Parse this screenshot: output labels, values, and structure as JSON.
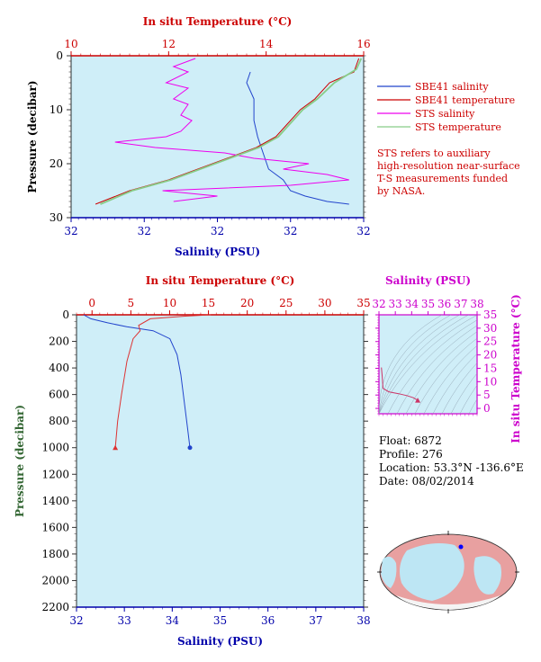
{
  "chart_data": [
    {
      "type": "line",
      "panel": "upper-profile",
      "top_axis_label": "In situ Temperature (°C)",
      "bottom_axis_label": "Salinity (PSU)",
      "ylabel": "Pressure (decibar)",
      "temperature_ticks": [
        "10",
        "12",
        "14",
        "16"
      ],
      "temperature_range": [
        10,
        16
      ],
      "salinity_ticks": [
        "32",
        "32",
        "32",
        "32",
        "32"
      ],
      "salinity_range": [
        31.7,
        32.5
      ],
      "pressure_ticks": [
        "0",
        "10",
        "20",
        "30"
      ],
      "pressure_range": [
        0,
        30
      ],
      "series": [
        {
          "name": "SBE41 salinity",
          "color": "#2244cc",
          "axis": "salinity",
          "points": [
            [
              32.19,
              3
            ],
            [
              32.18,
              5
            ],
            [
              32.2,
              8
            ],
            [
              32.2,
              12
            ],
            [
              32.21,
              15
            ],
            [
              32.22,
              17
            ],
            [
              32.23,
              19
            ],
            [
              32.24,
              21
            ],
            [
              32.28,
              23
            ],
            [
              32.3,
              25
            ],
            [
              32.34,
              26
            ],
            [
              32.4,
              27
            ],
            [
              32.46,
              27.5
            ]
          ]
        },
        {
          "name": "SBE41 temperature",
          "color": "#cc0000",
          "axis": "temperature",
          "points": [
            [
              15.9,
              0.5
            ],
            [
              15.8,
              3
            ],
            [
              15.3,
              5
            ],
            [
              15.0,
              8
            ],
            [
              14.7,
              10
            ],
            [
              14.4,
              13
            ],
            [
              14.2,
              15
            ],
            [
              13.8,
              17
            ],
            [
              13.2,
              19
            ],
            [
              12.6,
              21
            ],
            [
              12.0,
              23
            ],
            [
              11.2,
              25
            ],
            [
              10.5,
              27.5
            ]
          ]
        },
        {
          "name": "STS salinity",
          "color": "#ee00ee",
          "axis": "salinity",
          "points": [
            [
              32.04,
              0.5
            ],
            [
              31.98,
              2
            ],
            [
              32.02,
              3
            ],
            [
              31.96,
              5
            ],
            [
              32.02,
              6
            ],
            [
              31.98,
              8
            ],
            [
              32.02,
              9
            ],
            [
              32.0,
              11
            ],
            [
              32.03,
              12
            ],
            [
              32.0,
              14
            ],
            [
              31.96,
              15
            ],
            [
              31.82,
              16
            ],
            [
              31.93,
              17
            ],
            [
              32.12,
              18
            ],
            [
              32.2,
              19
            ],
            [
              32.35,
              20
            ],
            [
              32.28,
              21
            ],
            [
              32.4,
              22
            ],
            [
              32.46,
              23
            ],
            [
              32.3,
              24
            ],
            [
              31.95,
              25
            ],
            [
              32.1,
              26
            ],
            [
              31.98,
              27
            ]
          ]
        },
        {
          "name": "STS temperature",
          "color": "#88cc88",
          "axis": "temperature",
          "points": [
            [
              15.95,
              0.5
            ],
            [
              15.85,
              2.5
            ],
            [
              15.4,
              5
            ],
            [
              15.05,
              8
            ],
            [
              14.75,
              10
            ],
            [
              14.45,
              13
            ],
            [
              14.25,
              15
            ],
            [
              13.85,
              17
            ],
            [
              13.25,
              19
            ],
            [
              12.65,
              21
            ],
            [
              12.05,
              23
            ],
            [
              11.25,
              25
            ],
            [
              10.6,
              27.5
            ]
          ]
        }
      ],
      "legend": "right",
      "note": "STS refers to auxiliary high-resolution near-surface T-S measurements funded by NASA."
    },
    {
      "type": "line",
      "panel": "lower-profile",
      "top_axis_label": "In situ Temperature (°C)",
      "bottom_axis_label": "Salinity (PSU)",
      "ylabel": "Pressure (decibar)",
      "temperature_ticks": [
        "0",
        "5",
        "10",
        "15",
        "20",
        "25",
        "30",
        "35"
      ],
      "temperature_range": [
        -2,
        35
      ],
      "salinity_ticks": [
        "32",
        "33",
        "34",
        "35",
        "36",
        "37",
        "38"
      ],
      "salinity_range": [
        32,
        38
      ],
      "pressure_ticks": [
        "0",
        "200",
        "400",
        "600",
        "800",
        "1000",
        "1200",
        "1400",
        "1600",
        "1800",
        "2000",
        "2200"
      ],
      "pressure_range": [
        0,
        2200
      ],
      "series": [
        {
          "name": "salinity",
          "color": "#2244cc",
          "axis": "salinity",
          "points": [
            [
              32.15,
              0
            ],
            [
              32.3,
              30
            ],
            [
              32.65,
              60
            ],
            [
              33.05,
              90
            ],
            [
              33.6,
              120
            ],
            [
              33.95,
              180
            ],
            [
              34.1,
              300
            ],
            [
              34.18,
              450
            ],
            [
              34.25,
              650
            ],
            [
              34.32,
              850
            ],
            [
              34.37,
              1000
            ]
          ]
        },
        {
          "name": "temperature",
          "color": "#dd3333",
          "axis": "temperature",
          "points": [
            [
              15.3,
              0
            ],
            [
              12.0,
              10
            ],
            [
              7.5,
              30
            ],
            [
              6.0,
              80
            ],
            [
              6.2,
              120
            ],
            [
              5.3,
              180
            ],
            [
              4.5,
              350
            ],
            [
              3.8,
              600
            ],
            [
              3.3,
              800
            ],
            [
              3.0,
              1000
            ]
          ]
        }
      ]
    },
    {
      "type": "scatter",
      "panel": "t-s-diagram",
      "top_axis_label": "Salinity (PSU)",
      "right_axis_label": "In situ Temperature (°C)",
      "salinity_ticks": [
        "32",
        "33",
        "34",
        "35",
        "36",
        "37",
        "38"
      ],
      "salinity_range": [
        32,
        38
      ],
      "temperature_ticks": [
        "0",
        "5",
        "10",
        "15",
        "20",
        "25",
        "30",
        "35"
      ],
      "temperature_range": [
        -2,
        35
      ],
      "series": [
        {
          "name": "T-S",
          "color": "#cc3366",
          "points": [
            [
              32.15,
              15.3
            ],
            [
              32.2,
              12
            ],
            [
              32.25,
              7.5
            ],
            [
              32.6,
              6.2
            ],
            [
              33.2,
              5.5
            ],
            [
              33.7,
              4.8
            ],
            [
              34.1,
              4.0
            ],
            [
              34.37,
              3.0
            ]
          ]
        }
      ]
    }
  ],
  "float_info": {
    "float_label": "Float:",
    "float_value": "6872",
    "profile_label": "Profile:",
    "profile_value": "276",
    "location_label": "Location:",
    "location_value": "53.3°N  -136.6°E",
    "date_label": "Date:",
    "date_value": "08/02/2014"
  },
  "colors": {
    "plot_bg": "#cfeef8",
    "temperature_axis": "#cc0000",
    "salinity_axis": "#0000aa",
    "ts_axis": "#cc00cc",
    "pressure_axis": "#333333"
  }
}
